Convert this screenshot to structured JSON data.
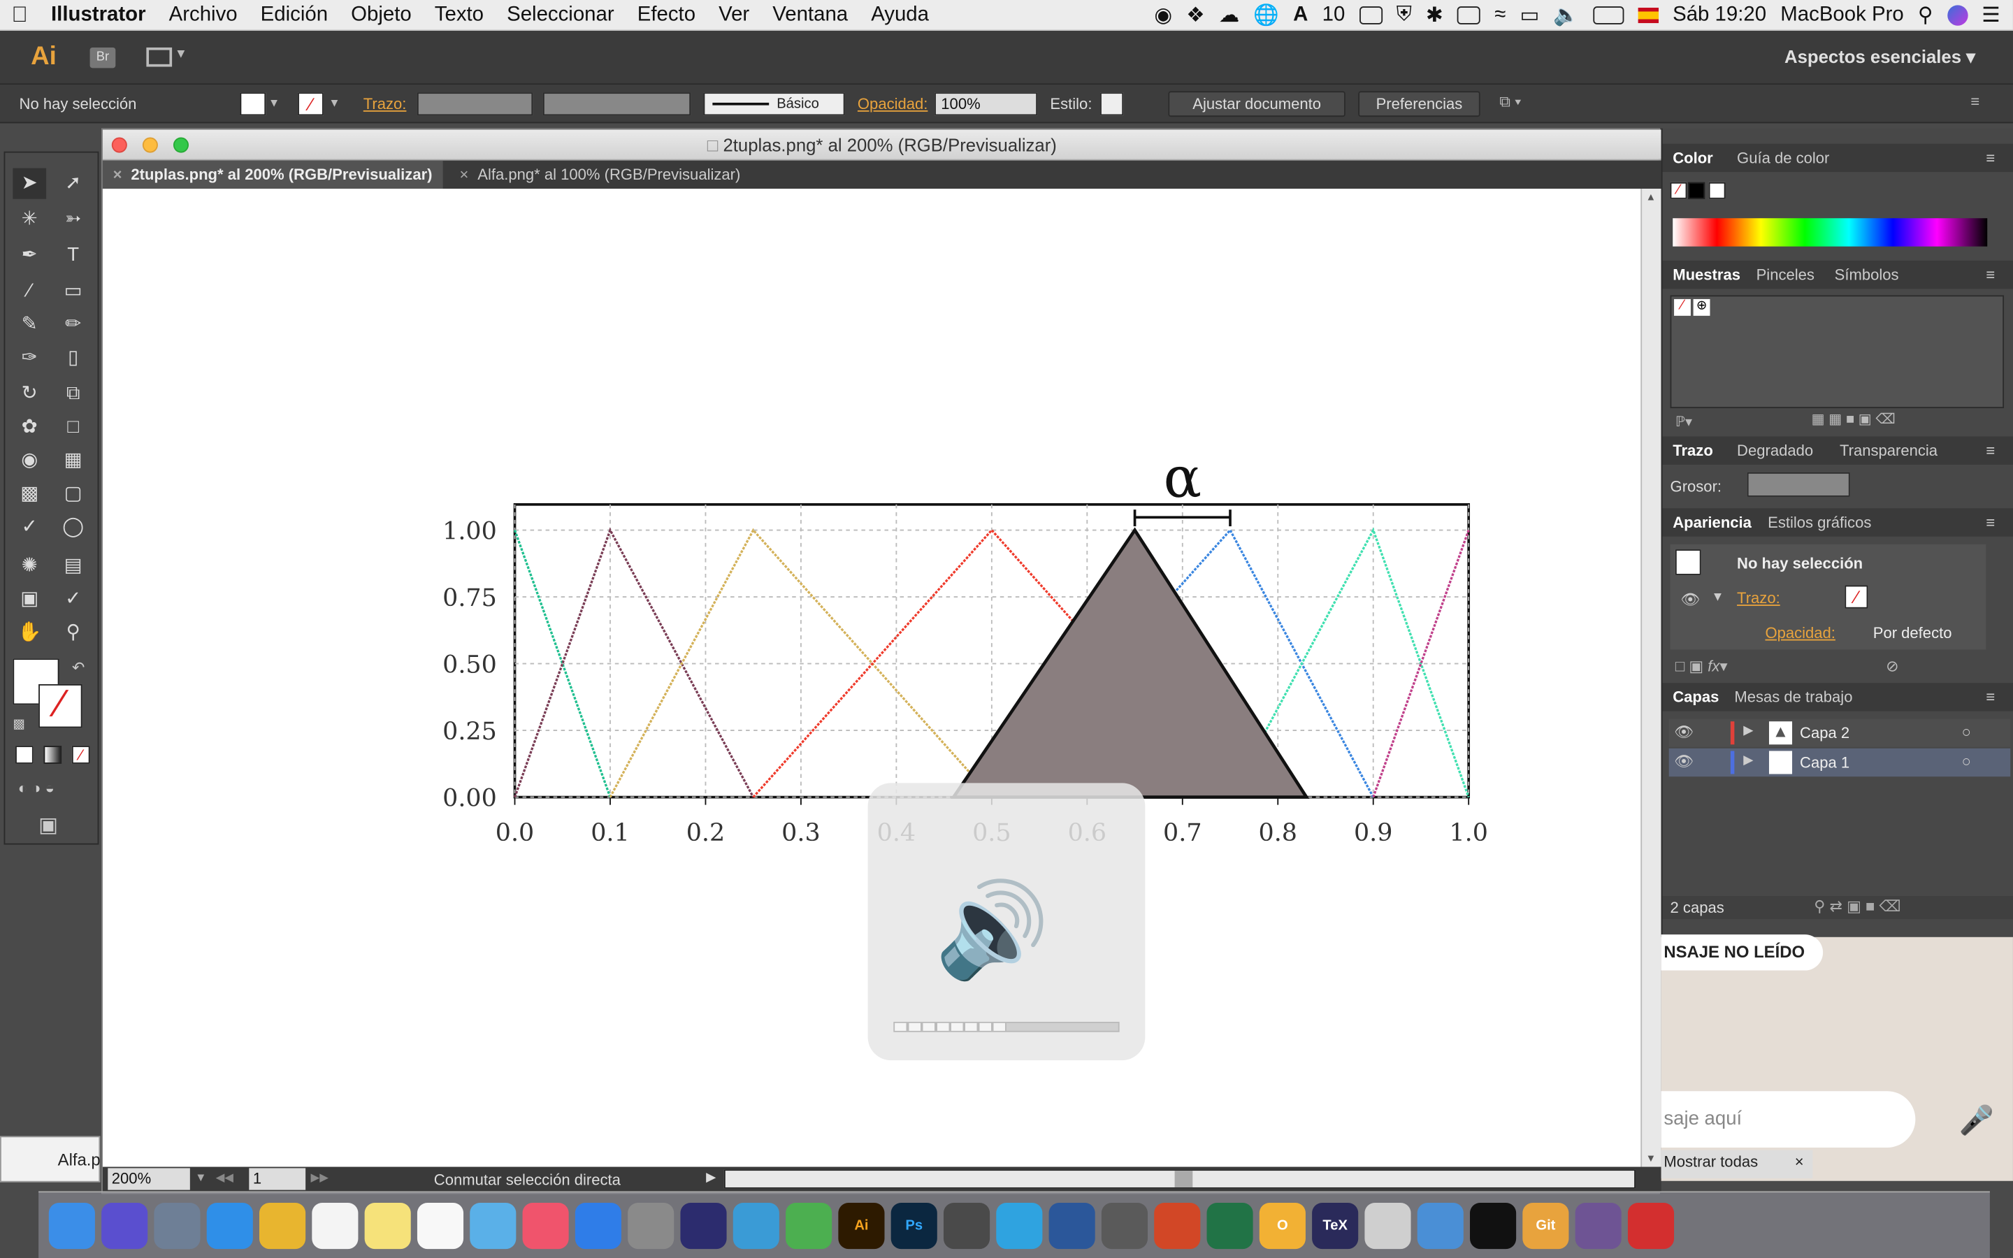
{
  "menubar": {
    "apple": "",
    "items": [
      "Illustrator",
      "Archivo",
      "Edición",
      "Objeto",
      "Texto",
      "Seleccionar",
      "Efecto",
      "Ver",
      "Ventana",
      "Ayuda"
    ],
    "notify_count": "10",
    "clock": "Sáb 19:20",
    "machine": "MacBook Pro"
  },
  "appbar": {
    "logo": "Ai",
    "bridge": "Br",
    "workspace": "Aspectos esenciales"
  },
  "control": {
    "selection": "No hay selección",
    "stroke_label": "Trazo:",
    "brush_label": "Básico",
    "opacity_label": "Opacidad:",
    "opacity_value": "100%",
    "style_label": "Estilo:",
    "fit_button": "Ajustar documento",
    "prefs_button": "Preferencias"
  },
  "document": {
    "title": "2tuplas.png* al 200% (RGB/Previsualizar)",
    "tabs": [
      {
        "label": "2tuplas.png* al 200% (RGB/Previsualizar)"
      },
      {
        "label": "Alfa.png* al 100% (RGB/Previsualizar)"
      }
    ],
    "zoom": "200%",
    "page": "1",
    "status_text": "Conmutar selección directa"
  },
  "panels": {
    "color_tabs": [
      "Color",
      "Guía de color"
    ],
    "swatch_tabs": [
      "Muestras",
      "Pinceles",
      "Símbolos"
    ],
    "stroke_tabs": [
      "Trazo",
      "Degradado",
      "Transparencia"
    ],
    "weight_label": "Grosor:",
    "appearance_tabs": [
      "Apariencia",
      "Estilos gráficos"
    ],
    "appearance_selection": "No hay selección",
    "appearance_stroke": "Trazo:",
    "appearance_opacity": "Opacidad:",
    "appearance_opacity_value": "Por defecto",
    "layers_tabs": [
      "Capas",
      "Mesas de trabajo"
    ],
    "layers": [
      {
        "name": "Capa 2",
        "color": "#e0413a"
      },
      {
        "name": "Capa 1",
        "color": "#4d6fe0"
      }
    ],
    "layers_count": "2 capas"
  },
  "whatsapp": {
    "unread": "NSAJE NO LEÍDO",
    "input_placeholder": "saje aquí",
    "show_all": "Mostrar todas"
  },
  "behind_window_label": "Alfa.p",
  "chart_data": {
    "type": "line",
    "title_symbol": "α",
    "xlim": [
      0,
      1.0
    ],
    "ylim": [
      0,
      1.0
    ],
    "xticks": [
      "0.0",
      "0.1",
      "0.2",
      "0.3",
      "0.4",
      "0.5",
      "0.6",
      "0.7",
      "0.8",
      "0.9",
      "1.0"
    ],
    "yticks": [
      "0.00",
      "0.25",
      "0.50",
      "0.75",
      "1.00"
    ],
    "grid": true,
    "series": [
      {
        "color": "#1fbf8f",
        "points": [
          [
            0,
            1
          ],
          [
            0.1,
            0
          ]
        ]
      },
      {
        "color": "#7a3d55",
        "points": [
          [
            0,
            0
          ],
          [
            0.1,
            1
          ],
          [
            0.25,
            0
          ]
        ]
      },
      {
        "color": "#d4b25a",
        "points": [
          [
            0.1,
            0
          ],
          [
            0.25,
            1
          ],
          [
            0.5,
            0
          ]
        ]
      },
      {
        "color": "#ef3b2c",
        "points": [
          [
            0.25,
            0
          ],
          [
            0.5,
            1
          ],
          [
            0.75,
            0
          ]
        ]
      },
      {
        "color": "#3a86e0",
        "points": [
          [
            0.5,
            0
          ],
          [
            0.75,
            1
          ],
          [
            0.9,
            0
          ]
        ]
      },
      {
        "color": "#40e0b0",
        "points": [
          [
            0.75,
            0
          ],
          [
            0.9,
            1
          ],
          [
            1.0,
            0
          ]
        ]
      },
      {
        "color": "#c0408a",
        "points": [
          [
            0.9,
            0
          ],
          [
            1.0,
            1
          ]
        ]
      }
    ],
    "overlay_triangle": {
      "color": "#8a7e7f",
      "points": [
        [
          0.46,
          0
        ],
        [
          0.65,
          1
        ],
        [
          0.83,
          0
        ]
      ]
    },
    "alpha_bracket": [
      0.65,
      0.75
    ]
  },
  "dock": [
    "Finder",
    "Siri",
    "Launchpad",
    "Safari",
    "Chrome",
    "Calendario",
    "Notas",
    "Recordatorios",
    "Twitterrific",
    "iTunes",
    "App Store",
    "Preferencias",
    "Eclipse",
    "Xcode",
    "Android Studio",
    "Ai",
    "Ps",
    "Sublime",
    "Telegram",
    "Word",
    "Utilidades",
    "PowerPoint",
    "Excel",
    "O",
    "TeX",
    "LaTeXit",
    "Contactos",
    "Terminal",
    "Git",
    "GitHub",
    "Acrobat"
  ]
}
